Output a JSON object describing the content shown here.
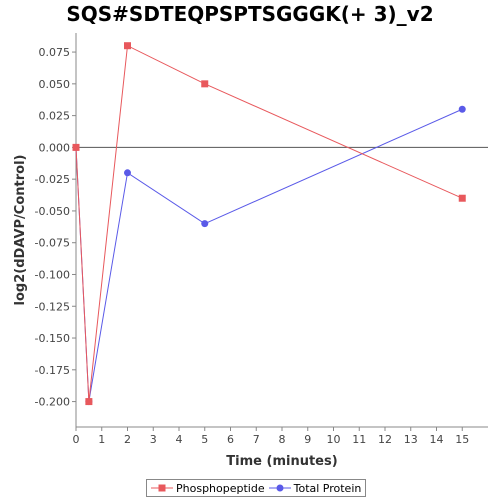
{
  "chart_data": {
    "type": "line",
    "title": "SQS#SDTEQPSPTSGGGK(+ 3)_v2",
    "xlabel": "Time (minutes)",
    "ylabel": "log2(dDAVP/Control)",
    "xlim": [
      0,
      16
    ],
    "ylim": [
      -0.22,
      0.09
    ],
    "xticks": [
      0,
      1,
      2,
      3,
      4,
      5,
      6,
      7,
      8,
      9,
      10,
      11,
      12,
      13,
      14,
      15
    ],
    "yticks": [
      -0.2,
      -0.175,
      -0.15,
      -0.125,
      -0.1,
      -0.075,
      -0.05,
      -0.025,
      0.0,
      0.025,
      0.05,
      0.075
    ],
    "ytick_labels": [
      "-0.200",
      "-0.175",
      "-0.150",
      "-0.125",
      "-0.100",
      "-0.075",
      "-0.050",
      "-0.025",
      "0.000",
      "0.025",
      "0.050",
      "0.075"
    ],
    "zero_line": true,
    "grid": false,
    "legend_position": "bottom",
    "series": [
      {
        "name": "Phosphopeptide",
        "color": "#e8585c",
        "marker": "square",
        "x": [
          0,
          0.5,
          2,
          5,
          15
        ],
        "y": [
          0.0,
          -0.2,
          0.08,
          0.05,
          -0.04
        ]
      },
      {
        "name": "Total Protein",
        "color": "#5a5ae8",
        "marker": "circle",
        "x": [
          0,
          0.5,
          2,
          5,
          15
        ],
        "y": [
          0.0,
          -0.2,
          -0.02,
          -0.06,
          0.03
        ]
      }
    ]
  }
}
